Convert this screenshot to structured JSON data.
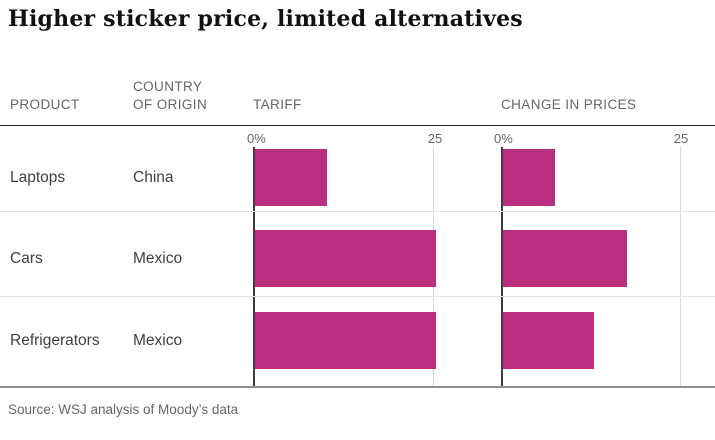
{
  "title": "Higher sticker price, limited alternatives",
  "columns": {
    "product": "PRODUCT",
    "origin": "COUNTRY\nOF ORIGIN",
    "tariff": "TARIFF",
    "change": "CHANGE IN PRICES"
  },
  "axis": {
    "zero_label": "0%",
    "max_label": "25",
    "max_value": 25
  },
  "rows": [
    {
      "product": "Laptops",
      "origin": "China",
      "tariff": 10,
      "change": 7.2
    },
    {
      "product": "Cars",
      "origin": "Mexico",
      "tariff": 25,
      "change": 17.2
    },
    {
      "product": "Refrigerators",
      "origin": "Mexico",
      "tariff": 25,
      "change": 12.6
    }
  ],
  "source": "Source: WSJ analysis of Moody’s data",
  "colors": {
    "bar": "#bb2f80",
    "axis_line": "#3d3d3d",
    "grid_line": "#d9d9d9",
    "header_rule": "#222222",
    "row_divider": "#e2e2e2",
    "bottom_rule": "#8f8f8f",
    "heading_text": "#666666",
    "body_text": "#3f3f3f",
    "title_text": "#111111"
  },
  "chart_data": {
    "type": "bar",
    "orientation": "horizontal",
    "title": "Higher sticker price, limited alternatives",
    "categories": [
      "Laptops",
      "Cars",
      "Refrigerators"
    ],
    "country_of_origin": [
      "China",
      "Mexico",
      "Mexico"
    ],
    "series": [
      {
        "name": "Tariff",
        "values": [
          10,
          25,
          25
        ]
      },
      {
        "name": "Change in prices",
        "values": [
          7.2,
          17.2,
          12.6
        ]
      }
    ],
    "xlim": [
      0,
      25
    ],
    "x_tick_labels": [
      "0%",
      "25"
    ],
    "unit": "percent",
    "grid": "single-vertical-at-25",
    "legend_position": "none",
    "source": "Source: WSJ analysis of Moody’s data"
  }
}
